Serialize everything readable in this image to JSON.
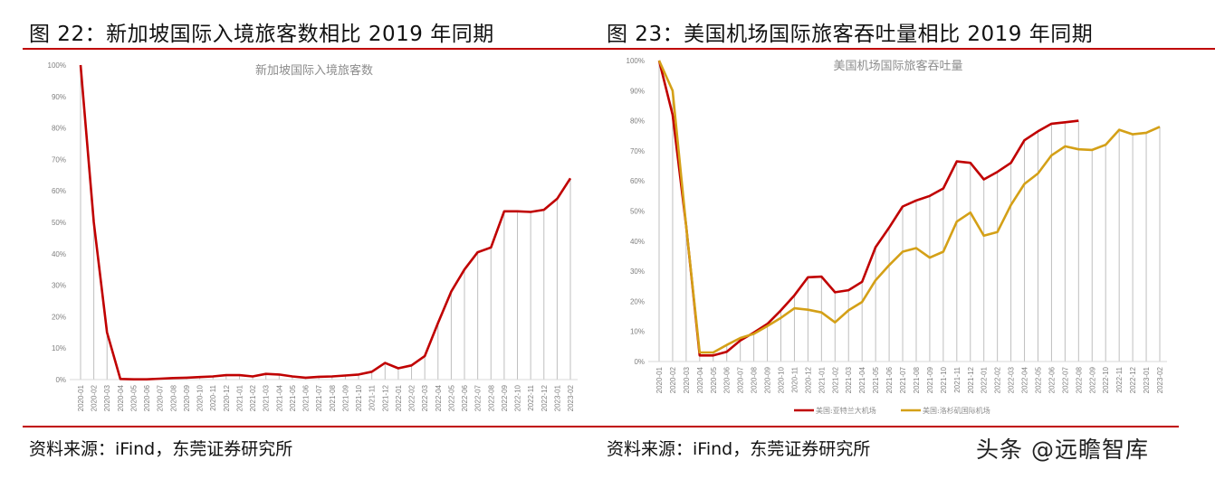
{
  "figures": [
    {
      "title": "图 22：新加坡国际入境旅客数相比 2019 年同期",
      "source": "资料来源：iFind，东莞证券研究所"
    },
    {
      "title": "图 23：美国机场国际旅客吞吐量相比 2019 年同期",
      "source": "资料来源：iFind，东莞证券研究所"
    }
  ],
  "watermark": "头条 @远瞻智库",
  "colors": {
    "rule": "#c00000",
    "series_red": "#c00000",
    "series_gold": "#d4a017",
    "grid": "#bfbfbf",
    "tick": "#7f7f7f"
  },
  "chart_data": [
    {
      "type": "line",
      "title": "新加坡国际入境旅客数",
      "xlabel": "",
      "ylabel": "",
      "ylim": [
        0,
        100
      ],
      "y_ticks": [
        "0%",
        "10%",
        "20%",
        "30%",
        "40%",
        "50%",
        "60%",
        "70%",
        "80%",
        "90%",
        "100%"
      ],
      "grid": "vertical drop lines",
      "legend": null,
      "categories": [
        "2020-01",
        "2020-02",
        "2020-03",
        "2020-04",
        "2020-05",
        "2020-06",
        "2020-07",
        "2020-08",
        "2020-09",
        "2020-10",
        "2020-11",
        "2020-12",
        "2021-01",
        "2021-02",
        "2021-03",
        "2021-04",
        "2021-05",
        "2021-06",
        "2021-07",
        "2021-08",
        "2021-09",
        "2021-10",
        "2021-11",
        "2021-12",
        "2022-01",
        "2022-02",
        "2022-03",
        "2022-04",
        "2022-05",
        "2022-06",
        "2022-07",
        "2022-08",
        "2022-09",
        "2022-10",
        "2022-11",
        "2022-12",
        "2023-01",
        "2023-02"
      ],
      "series": [
        {
          "name": "新加坡国际入境旅客数",
          "color": "#c00000",
          "values": [
            100,
            50,
            15,
            0.2,
            0.1,
            0.1,
            0.3,
            0.5,
            0.6,
            0.8,
            1.0,
            1.4,
            1.4,
            1.0,
            1.8,
            1.6,
            1.0,
            0.6,
            0.9,
            1.0,
            1.3,
            1.6,
            2.5,
            5.3,
            3.6,
            4.5,
            7.5,
            18,
            28,
            35,
            40.5,
            42,
            53.5,
            53.5,
            53.3,
            54,
            57.5,
            64
          ]
        }
      ]
    },
    {
      "type": "line",
      "title": "美国机场国际旅客吞吐量",
      "xlabel": "",
      "ylabel": "",
      "ylim": [
        0,
        100
      ],
      "y_ticks": [
        "0%",
        "10%",
        "20%",
        "30%",
        "40%",
        "50%",
        "60%",
        "70%",
        "80%",
        "90%",
        "100%"
      ],
      "grid": "vertical drop lines",
      "legend": "bottom",
      "categories": [
        "2020-01",
        "2020-02",
        "2020-03",
        "2020-04",
        "2020-05",
        "2020-06",
        "2020-07",
        "2020-08",
        "2020-09",
        "2020-10",
        "2020-11",
        "2020-12",
        "2021-01",
        "2021-02",
        "2021-03",
        "2021-04",
        "2021-05",
        "2021-06",
        "2021-07",
        "2021-08",
        "2021-09",
        "2021-10",
        "2021-11",
        "2021-12",
        "2022-01",
        "2022-02",
        "2022-03",
        "2022-04",
        "2022-05",
        "2022-06",
        "2022-07",
        "2022-08",
        "2022-09",
        "2022-10",
        "2022-11",
        "2022-12",
        "2023-01",
        "2023-02"
      ],
      "series": [
        {
          "name": "美国:亚特兰大机场",
          "color": "#c00000",
          "values": [
            100,
            82,
            45,
            2,
            2,
            3.2,
            7,
            9.6,
            12.5,
            17,
            22,
            28,
            28.2,
            23,
            23.7,
            26.5,
            38,
            44.5,
            51.5,
            53.5,
            55,
            57.5,
            66.5,
            66,
            60.5,
            63,
            66,
            73.5,
            76.5,
            79,
            79.5,
            80
          ]
        },
        {
          "name": "美国:洛杉矶国际机场",
          "color": "#d4a017",
          "values": [
            100,
            90,
            45,
            3,
            3,
            5.5,
            7.8,
            9.2,
            11.8,
            14.5,
            17.7,
            17.2,
            16.3,
            13,
            17,
            19.8,
            27,
            32,
            36.5,
            37.7,
            34.5,
            36.5,
            46.5,
            49.5,
            41.8,
            43,
            52,
            59,
            62.5,
            68.5,
            71.5,
            70.5,
            70.3,
            72,
            77,
            75.5,
            76,
            78
          ]
        }
      ]
    }
  ]
}
